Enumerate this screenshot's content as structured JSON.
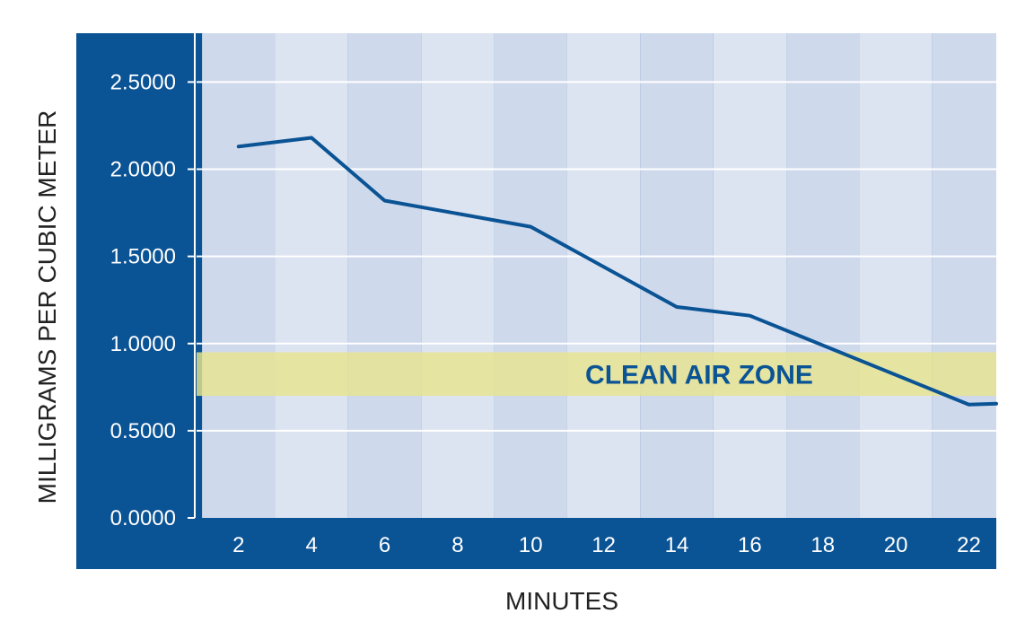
{
  "chart_data": {
    "type": "line",
    "xlabel": "MINUTES",
    "ylabel": "MILLIGRAMS PER CUBIC METER",
    "x_ticks": [
      "2",
      "4",
      "6",
      "8",
      "10",
      "12",
      "14",
      "16",
      "18",
      "20",
      "22"
    ],
    "y_ticks": [
      "0.0000",
      "0.5000",
      "1.0000",
      "1.5000",
      "2.0000",
      "2.5000"
    ],
    "xlim": [
      0.85,
      22.75
    ],
    "ylim": [
      0,
      2.78
    ],
    "grid": true,
    "series": [
      {
        "x": [
          2,
          4,
          6,
          10,
          14,
          16,
          22,
          22.75
        ],
        "y": [
          2.13,
          2.18,
          1.82,
          1.67,
          1.21,
          1.16,
          0.65,
          0.655
        ]
      }
    ],
    "bands": [
      {
        "label": "CLEAN AIR ZONE",
        "y_from": 0.7,
        "y_to": 0.95
      }
    ],
    "colors": {
      "frame": "#0a5394",
      "line": "#0a5394",
      "band": "#e6e48f",
      "stripe_light": "#dde4f1",
      "stripe_dark": "#cfd9ec",
      "grid": "#ffffff",
      "label_text": "#ffffff"
    }
  }
}
